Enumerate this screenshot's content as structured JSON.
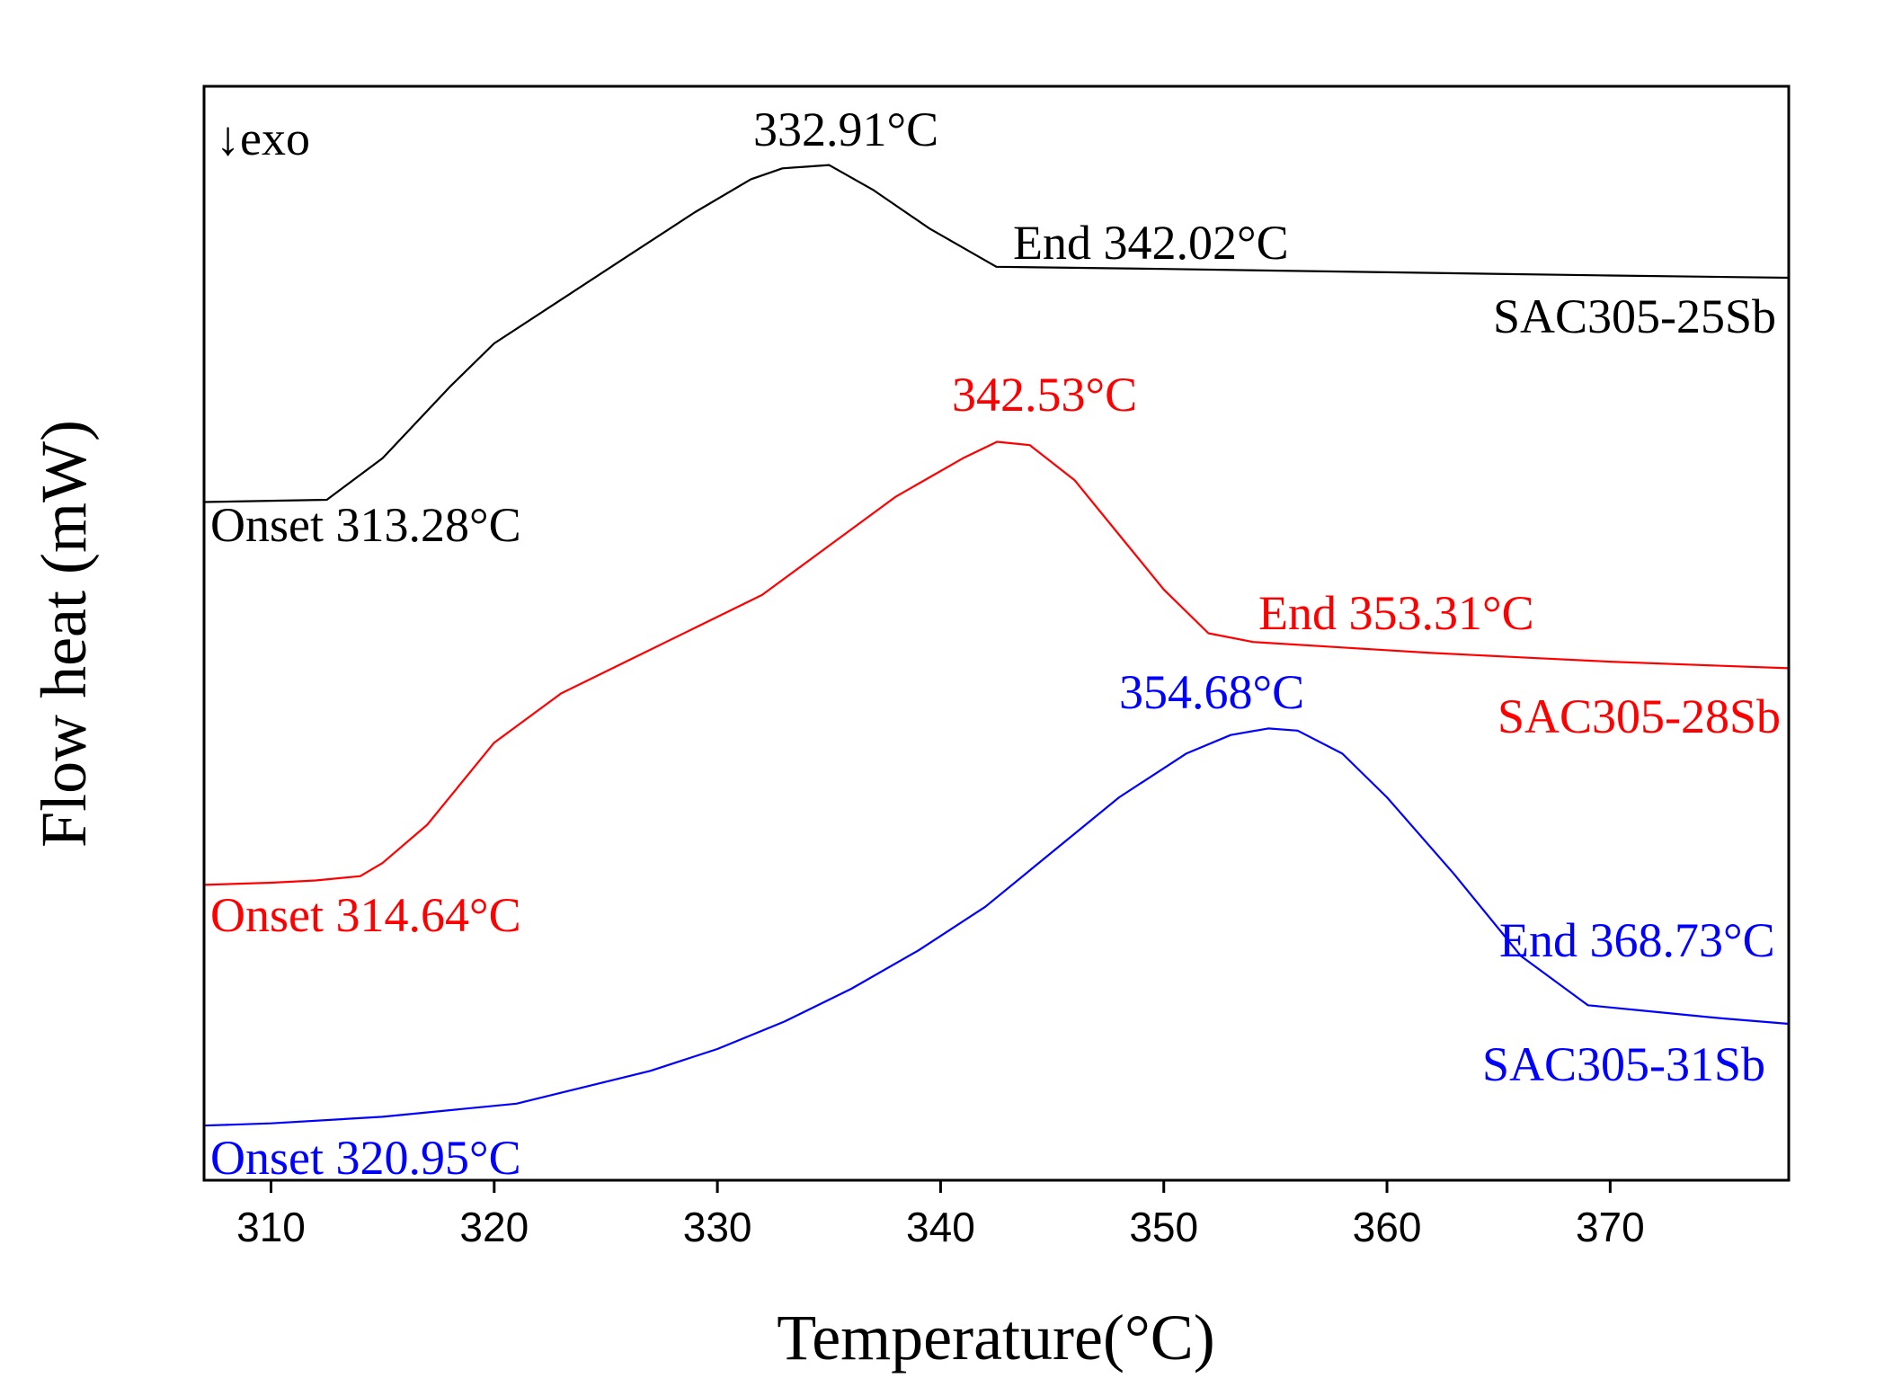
{
  "chart_data": {
    "type": "line",
    "title": "",
    "xlabel": "Temperature(°C)",
    "ylabel": "Flow heat (mW)",
    "xlim": [
      307,
      378
    ],
    "ylim": [
      0,
      100
    ],
    "xticks": [
      310,
      320,
      330,
      340,
      350,
      360,
      370
    ],
    "xtick_labels": [
      "310",
      "320",
      "330",
      "340",
      "350",
      "360",
      "370"
    ],
    "grid": false,
    "direction_label": "↓exo",
    "series": [
      {
        "name": "SAC305-25Sb",
        "color": "#000000",
        "x": [
          307,
          312.5,
          315,
          318,
          320,
          323,
          326,
          329,
          331.5,
          332.91,
          335,
          337,
          339.5,
          342.5,
          350,
          360,
          370,
          378
        ],
        "y": [
          62,
          62.2,
          66,
          72.5,
          76.5,
          80.5,
          84.5,
          88.5,
          91.5,
          92.5,
          92.8,
          90.5,
          87,
          83.5,
          83.3,
          83.0,
          82.7,
          82.5
        ],
        "peak_label": "332.91°C",
        "onset_label": "Onset 313.28°C",
        "end_label": "End 342.02°C"
      },
      {
        "name": "SAC305-28Sb",
        "color": "#ff0000",
        "x": [
          307,
          310,
          312,
          314,
          315,
          317,
          320,
          323,
          326,
          329,
          332,
          335,
          338,
          341,
          342.53,
          344,
          346,
          348,
          350,
          352,
          354,
          358,
          362,
          366,
          370,
          374,
          378
        ],
        "y": [
          27,
          27.2,
          27.4,
          27.8,
          29,
          32.5,
          40,
          44.5,
          47.5,
          50.5,
          53.5,
          58,
          62.5,
          66,
          67.5,
          67.2,
          64,
          59,
          54,
          50,
          49.2,
          48.7,
          48.2,
          47.8,
          47.4,
          47.1,
          46.8
        ],
        "peak_label": "342.53°C",
        "onset_label": "Onset 314.64°C",
        "end_label": "End 353.31°C"
      },
      {
        "name": "SAC305-31Sb",
        "color": "#0000ff",
        "x": [
          307,
          310,
          315,
          321,
          324,
          327,
          330,
          333,
          336,
          339,
          342,
          345,
          348,
          351,
          353,
          354.68,
          356,
          358,
          360,
          363,
          366,
          369,
          372,
          375,
          378
        ],
        "y": [
          5,
          5.2,
          5.8,
          7,
          8.5,
          10,
          12,
          14.5,
          17.5,
          21,
          25,
          30,
          35,
          39,
          40.7,
          41.3,
          41.1,
          39,
          35,
          28,
          20.5,
          16,
          15.4,
          14.8,
          14.3
        ],
        "peak_label": "354.68°C",
        "onset_label": "Onset 320.95°C",
        "end_label": "End 368.73°C"
      }
    ]
  }
}
